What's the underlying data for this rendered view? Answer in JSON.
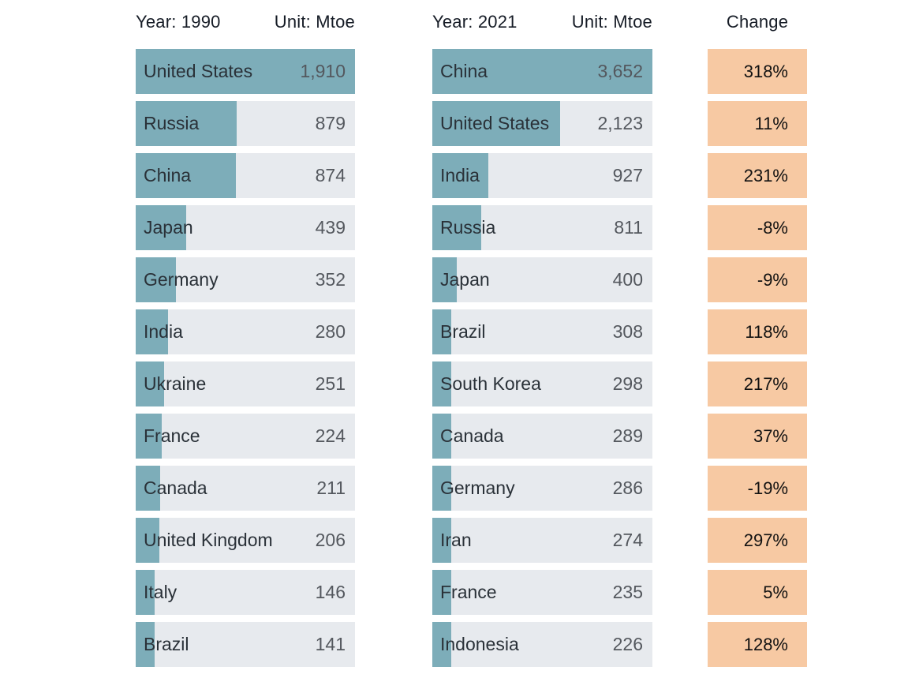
{
  "colors": {
    "bar_fill": "#7dadb9",
    "bar_track": "#e7eaee",
    "change_fill": "#f7c9a3",
    "label_text": "#2a3138",
    "value_text": "#54585e",
    "header_text": "#161c26",
    "change_text": "#111111"
  },
  "chart_data": {
    "type": "bar",
    "orientation": "horizontal",
    "description": "Primary energy consumption by country, 1990 vs 2021, with percent change",
    "unit": "Mtoe",
    "panels": [
      {
        "year_label": "Year: 1990",
        "unit_label": "Unit: Mtoe",
        "max_value": 1910,
        "rows": [
          {
            "country": "United States",
            "value": 1910,
            "display": "1,910"
          },
          {
            "country": "Russia",
            "value": 879,
            "display": "879"
          },
          {
            "country": "China",
            "value": 874,
            "display": "874"
          },
          {
            "country": "Japan",
            "value": 439,
            "display": "439"
          },
          {
            "country": "Germany",
            "value": 352,
            "display": "352"
          },
          {
            "country": "India",
            "value": 280,
            "display": "280"
          },
          {
            "country": "Ukraine",
            "value": 251,
            "display": "251"
          },
          {
            "country": "France",
            "value": 224,
            "display": "224"
          },
          {
            "country": "Canada",
            "value": 211,
            "display": "211"
          },
          {
            "country": "United Kingdom",
            "value": 206,
            "display": "206"
          },
          {
            "country": "Italy",
            "value": 146,
            "display": "146"
          },
          {
            "country": "Brazil",
            "value": 141,
            "display": "141"
          }
        ]
      },
      {
        "year_label": "Year: 2021",
        "unit_label": "Unit: Mtoe",
        "max_value": 3652,
        "rows": [
          {
            "country": "China",
            "value": 3652,
            "display": "3,652"
          },
          {
            "country": "United States",
            "value": 2123,
            "display": "2,123"
          },
          {
            "country": "India",
            "value": 927,
            "display": "927"
          },
          {
            "country": "Russia",
            "value": 811,
            "display": "811"
          },
          {
            "country": "Japan",
            "value": 400,
            "display": "400"
          },
          {
            "country": "Brazil",
            "value": 308,
            "display": "308"
          },
          {
            "country": "South Korea",
            "value": 298,
            "display": "298"
          },
          {
            "country": "Canada",
            "value": 289,
            "display": "289"
          },
          {
            "country": "Germany",
            "value": 286,
            "display": "286"
          },
          {
            "country": "Iran",
            "value": 274,
            "display": "274"
          },
          {
            "country": "France",
            "value": 235,
            "display": "235"
          },
          {
            "country": "Indonesia",
            "value": 226,
            "display": "226"
          }
        ]
      }
    ],
    "change_column": {
      "header": "Change",
      "values": [
        "318%",
        "11%",
        "231%",
        "-8%",
        "-9%",
        "118%",
        "217%",
        "37%",
        "-19%",
        "297%",
        "5%",
        "128%"
      ]
    }
  }
}
